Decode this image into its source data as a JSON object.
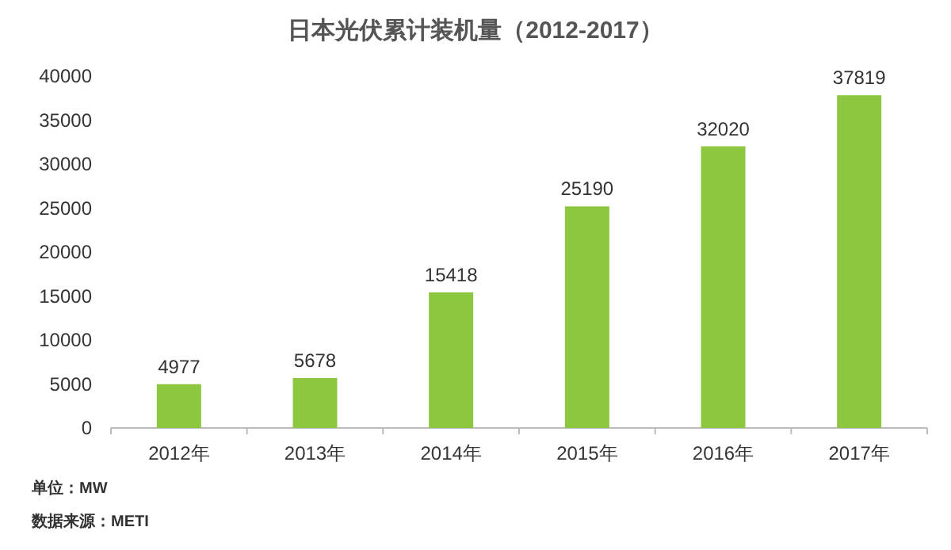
{
  "chart_data": {
    "type": "bar",
    "title": "日本光伏累计装机量（2012-2017）",
    "categories": [
      "2012年",
      "2013年",
      "2014年",
      "2015年",
      "2016年",
      "2017年"
    ],
    "series": [
      {
        "color": "#8dc63f",
        "values": [
          4977,
          5678,
          15418,
          25190,
          32020,
          37819
        ]
      }
    ],
    "ylim": [
      0,
      40000
    ],
    "yticks": [
      0,
      5000,
      10000,
      15000,
      20000,
      25000,
      30000,
      35000,
      40000
    ],
    "data_labels": true,
    "annotations": [
      "单位：MW",
      "数据来源：METI"
    ]
  }
}
